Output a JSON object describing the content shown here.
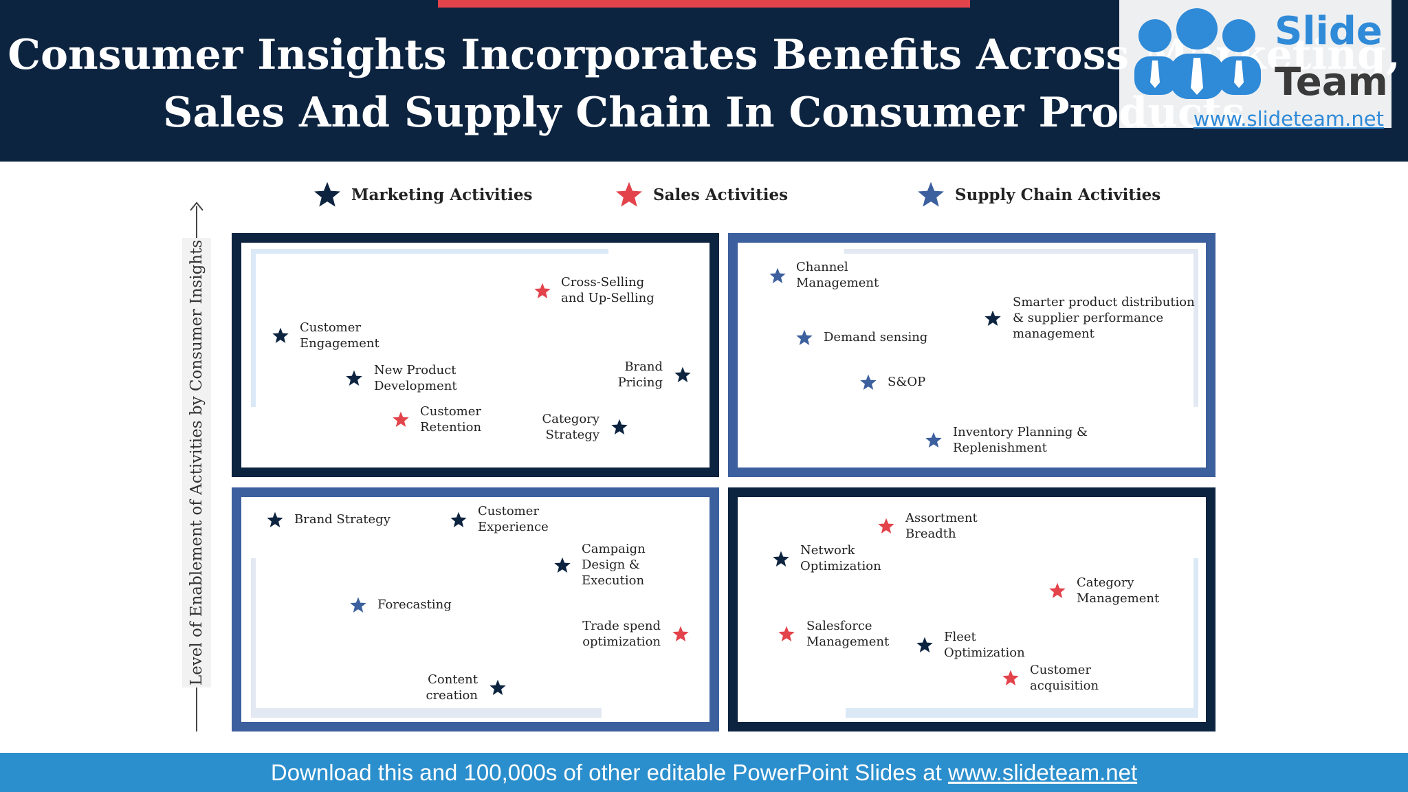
{
  "title": {
    "line1": "Consumer Insights Incorporates Benefits Across Marketing,",
    "line2": "Sales And Supply Chain In Consumer Products"
  },
  "logo": {
    "brand_top": "Slide",
    "brand_bottom": "Team",
    "url": "www.slideteam.net"
  },
  "legend": [
    {
      "label": "Marketing Activities",
      "color": "#0d2440"
    },
    {
      "label": "Sales Activities",
      "color": "#e3434b"
    },
    {
      "label": "Supply Chain Activities",
      "color": "#3c5f9e"
    }
  ],
  "y_axis_label": "Level of Enablement of Activities by Consumer Insights",
  "colors": {
    "marketing": "#0d2440",
    "sales": "#e3434b",
    "supply": "#3c5f9e",
    "header": "#0d2440",
    "footer": "#2c8fcd"
  },
  "quadrants": {
    "top_left": [
      {
        "type": "sales",
        "lines": [
          "Cross-Selling",
          "and Up-Selling"
        ]
      },
      {
        "type": "marketing",
        "lines": [
          "Customer",
          "Engagement"
        ]
      },
      {
        "type": "marketing",
        "lines": [
          "New Product",
          "Development"
        ]
      },
      {
        "type": "marketing",
        "lines": [
          "Brand",
          "Pricing"
        ]
      },
      {
        "type": "sales",
        "lines": [
          "Customer",
          "Retention"
        ]
      },
      {
        "type": "marketing",
        "lines": [
          "Category",
          "Strategy"
        ]
      }
    ],
    "top_right": [
      {
        "type": "supply",
        "lines": [
          "Channel",
          "Management"
        ]
      },
      {
        "type": "marketing",
        "lines": [
          "Smarter product distribution",
          "& supplier performance",
          "management"
        ]
      },
      {
        "type": "supply",
        "lines": [
          "Demand sensing"
        ]
      },
      {
        "type": "supply",
        "lines": [
          "S&OP"
        ]
      },
      {
        "type": "supply",
        "lines": [
          "Inventory Planning &",
          "Replenishment"
        ]
      }
    ],
    "bottom_left": [
      {
        "type": "marketing",
        "lines": [
          "Brand Strategy"
        ]
      },
      {
        "type": "marketing",
        "lines": [
          "Customer",
          "Experience"
        ]
      },
      {
        "type": "marketing",
        "lines": [
          "Campaign",
          "Design &",
          "Execution"
        ]
      },
      {
        "type": "supply",
        "lines": [
          "Forecasting"
        ]
      },
      {
        "type": "sales",
        "lines": [
          "Trade spend",
          "optimization"
        ]
      },
      {
        "type": "marketing",
        "lines": [
          "Content",
          "creation"
        ]
      }
    ],
    "bottom_right": [
      {
        "type": "sales",
        "lines": [
          "Assortment",
          "Breadth"
        ]
      },
      {
        "type": "marketing",
        "lines": [
          "Network",
          "Optimization"
        ]
      },
      {
        "type": "sales",
        "lines": [
          "Category",
          "Management"
        ]
      },
      {
        "type": "sales",
        "lines": [
          "Salesforce",
          "Management"
        ]
      },
      {
        "type": "marketing",
        "lines": [
          "Fleet",
          "Optimization"
        ]
      },
      {
        "type": "sales",
        "lines": [
          "Customer",
          "acquisition"
        ]
      }
    ]
  },
  "footer": {
    "text": "Download this and 100,000s of other editable PowerPoint Slides at ",
    "link": "www.slideteam.net"
  }
}
